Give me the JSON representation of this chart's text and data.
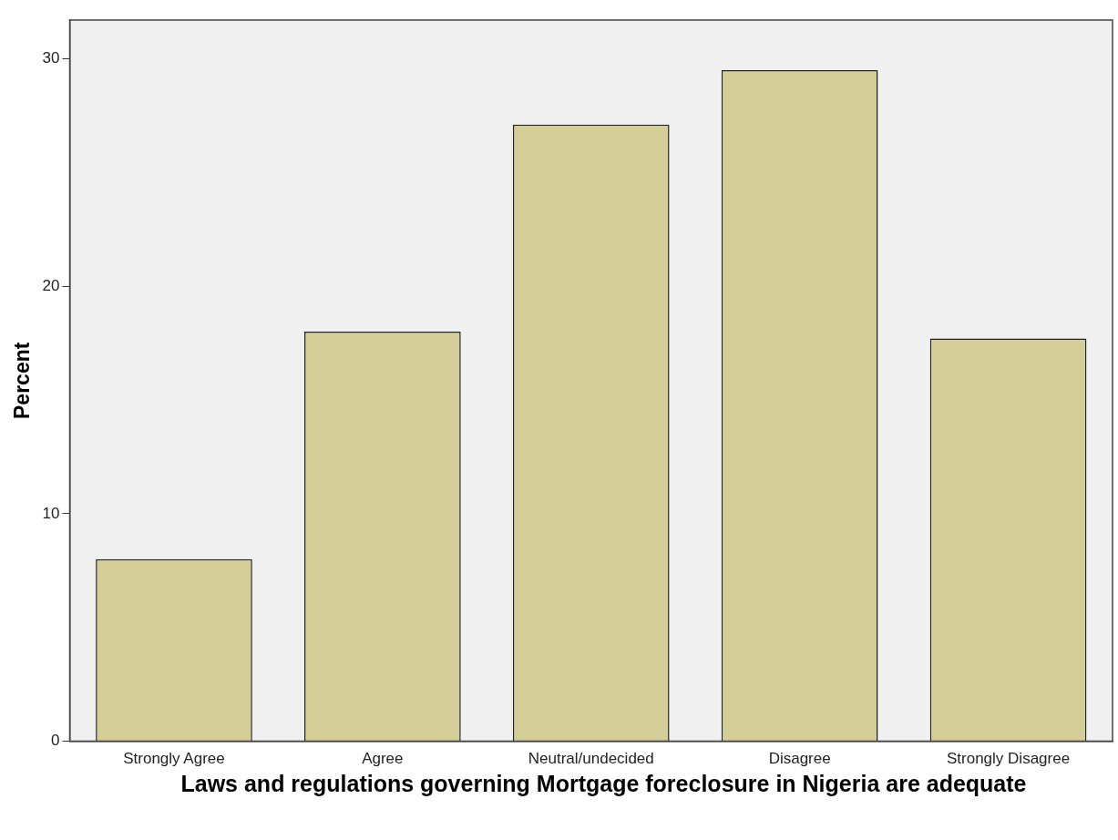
{
  "chart_data": {
    "type": "bar",
    "xlabel": "Laws and regulations governing Mortgage foreclosure in Nigeria are adequate",
    "ylabel": "Percent",
    "categories": [
      "Strongly Agree",
      "Agree",
      "Neutral/undecided",
      "Disagree",
      "Strongly Disagree"
    ],
    "values": [
      8.0,
      18.0,
      27.1,
      29.5,
      17.7
    ],
    "color": "#d3ce97",
    "ylim": [
      0,
      31.7
    ],
    "yticks": [
      0,
      10,
      20,
      30
    ],
    "grid": false,
    "legend": false
  }
}
